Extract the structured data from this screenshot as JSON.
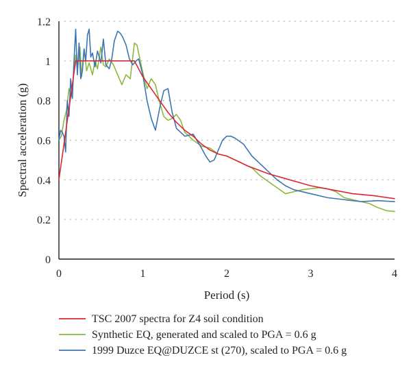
{
  "chart_data": {
    "type": "line",
    "title": "",
    "xlabel": "Period (s)",
    "ylabel": "Spectral acceleration (g)",
    "xlim": [
      0,
      4
    ],
    "ylim": [
      0,
      1.2
    ],
    "x_ticks": [
      "0",
      "1",
      "2",
      "3",
      "4"
    ],
    "y_ticks": [
      "0",
      "0.2",
      "0.4",
      "0.6",
      "0.8",
      "1",
      "1.2"
    ],
    "grid": "horizontal dotted",
    "legend_position": "bottom",
    "series": [
      {
        "name": "TSC 2007 spectra for Z4 soil condition",
        "color": "#d9282f",
        "x": [
          0,
          0.05,
          0.1,
          0.15,
          0.2,
          0.3,
          0.5,
          0.7,
          0.9,
          1.0,
          1.1,
          1.2,
          1.3,
          1.4,
          1.5,
          1.6,
          1.7,
          1.8,
          1.9,
          2.0,
          2.25,
          2.5,
          2.75,
          3.0,
          3.25,
          3.5,
          3.75,
          4.0
        ],
        "y": [
          0.4,
          0.55,
          0.7,
          0.85,
          1.0,
          1.0,
          1.0,
          1.0,
          1.0,
          0.92,
          0.86,
          0.8,
          0.74,
          0.69,
          0.65,
          0.62,
          0.58,
          0.55,
          0.53,
          0.52,
          0.47,
          0.43,
          0.4,
          0.37,
          0.35,
          0.33,
          0.32,
          0.305
        ]
      },
      {
        "name": "Synthetic EQ, generated and scaled to PGA = 0.6 g",
        "color": "#8cb83f",
        "x": [
          0,
          0.03,
          0.06,
          0.09,
          0.12,
          0.15,
          0.18,
          0.2,
          0.22,
          0.25,
          0.27,
          0.3,
          0.33,
          0.36,
          0.4,
          0.43,
          0.46,
          0.5,
          0.53,
          0.56,
          0.6,
          0.65,
          0.7,
          0.75,
          0.8,
          0.85,
          0.9,
          0.93,
          0.96,
          1.0,
          1.05,
          1.1,
          1.15,
          1.2,
          1.25,
          1.3,
          1.35,
          1.4,
          1.45,
          1.5,
          1.6,
          1.7,
          1.8,
          1.9,
          2.0,
          2.1,
          2.2,
          2.3,
          2.4,
          2.5,
          2.6,
          2.7,
          2.8,
          2.9,
          3.0,
          3.1,
          3.2,
          3.3,
          3.4,
          3.5,
          3.6,
          3.7,
          3.8,
          3.9,
          4.0
        ],
        "y": [
          0.6,
          0.62,
          0.7,
          0.75,
          0.86,
          0.82,
          0.95,
          1.03,
          0.95,
          1.07,
          0.92,
          1.06,
          0.95,
          0.99,
          0.93,
          1.0,
          0.96,
          1.07,
          0.98,
          0.97,
          1.01,
          0.98,
          0.93,
          0.88,
          0.93,
          0.91,
          1.09,
          1.08,
          1.02,
          0.94,
          0.86,
          0.91,
          0.88,
          0.79,
          0.72,
          0.7,
          0.71,
          0.73,
          0.7,
          0.64,
          0.6,
          0.57,
          0.56,
          0.53,
          0.52,
          0.5,
          0.48,
          0.46,
          0.42,
          0.39,
          0.36,
          0.33,
          0.34,
          0.35,
          0.355,
          0.36,
          0.355,
          0.34,
          0.31,
          0.3,
          0.29,
          0.28,
          0.26,
          0.245,
          0.24
        ]
      },
      {
        "name": "1999 Duzce EQ@DUZCE st (270), scaled to PGA = 0.6 g",
        "color": "#3b75b3",
        "x": [
          0,
          0.02,
          0.04,
          0.06,
          0.08,
          0.1,
          0.12,
          0.14,
          0.16,
          0.18,
          0.2,
          0.22,
          0.24,
          0.26,
          0.28,
          0.3,
          0.32,
          0.34,
          0.36,
          0.38,
          0.4,
          0.43,
          0.46,
          0.5,
          0.53,
          0.56,
          0.6,
          0.63,
          0.66,
          0.7,
          0.73,
          0.76,
          0.8,
          0.84,
          0.88,
          0.92,
          0.95,
          1.0,
          1.05,
          1.1,
          1.15,
          1.2,
          1.25,
          1.3,
          1.35,
          1.4,
          1.5,
          1.6,
          1.7,
          1.75,
          1.8,
          1.85,
          1.9,
          1.95,
          2.0,
          2.05,
          2.1,
          2.2,
          2.3,
          2.4,
          2.5,
          2.6,
          2.7,
          2.8,
          2.9,
          3.0,
          3.2,
          3.4,
          3.6,
          3.8,
          4.0
        ],
        "y": [
          0.6,
          0.65,
          0.64,
          0.62,
          0.54,
          0.8,
          0.72,
          0.91,
          0.81,
          1.0,
          1.16,
          0.93,
          1.09,
          0.91,
          0.95,
          1.06,
          1.0,
          1.13,
          1.16,
          1.02,
          1.04,
          0.97,
          1.05,
          0.99,
          1.11,
          0.98,
          0.96,
          1.01,
          1.1,
          1.15,
          1.14,
          1.12,
          1.08,
          1.01,
          0.98,
          1.0,
          1.01,
          0.93,
          0.8,
          0.71,
          0.65,
          0.76,
          0.85,
          0.86,
          0.74,
          0.66,
          0.62,
          0.63,
          0.56,
          0.52,
          0.49,
          0.5,
          0.55,
          0.6,
          0.62,
          0.62,
          0.61,
          0.58,
          0.52,
          0.48,
          0.44,
          0.4,
          0.37,
          0.35,
          0.34,
          0.33,
          0.31,
          0.3,
          0.29,
          0.295,
          0.29
        ]
      }
    ]
  }
}
